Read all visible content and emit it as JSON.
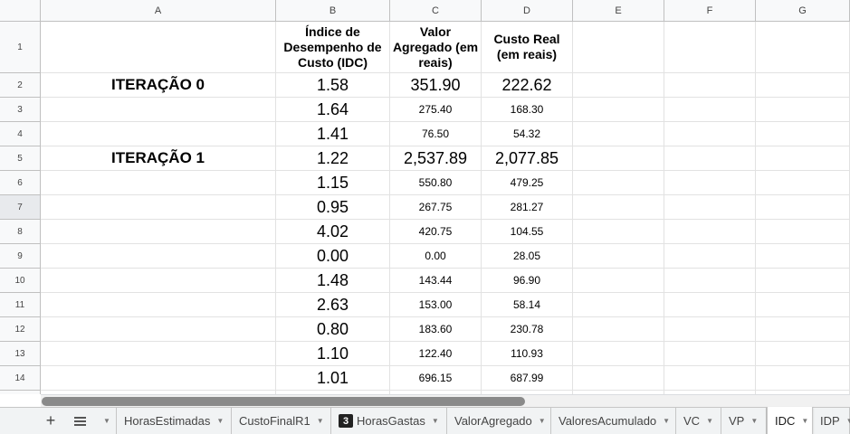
{
  "columns": [
    "A",
    "B",
    "C",
    "D",
    "E",
    "F",
    "G"
  ],
  "rows": [
    "1",
    "2",
    "3",
    "4",
    "5",
    "6",
    "7",
    "8",
    "9",
    "10",
    "11",
    "12",
    "13",
    "14"
  ],
  "header": {
    "b": "Índice de Desempenho de Custo (IDC)",
    "c": "Valor Agregado (em reais)",
    "d": "Custo Real (em reais)"
  },
  "data": [
    {
      "a": "ITERAÇÃO 0",
      "b": "1.58",
      "c": "351.90",
      "d": "222.62"
    },
    {
      "a": "",
      "b": "1.64",
      "c": "275.40",
      "d": "168.30"
    },
    {
      "a": "",
      "b": "1.41",
      "c": "76.50",
      "d": "54.32"
    },
    {
      "a": "ITERAÇÃO 1",
      "b": "1.22",
      "c": "2,537.89",
      "d": "2,077.85"
    },
    {
      "a": "",
      "b": "1.15",
      "c": "550.80",
      "d": "479.25"
    },
    {
      "a": "",
      "b": "0.95",
      "c": "267.75",
      "d": "281.27"
    },
    {
      "a": "",
      "b": "4.02",
      "c": "420.75",
      "d": "104.55"
    },
    {
      "a": "",
      "b": "0.00",
      "c": "0.00",
      "d": "28.05"
    },
    {
      "a": "",
      "b": "1.48",
      "c": "143.44",
      "d": "96.90"
    },
    {
      "a": "",
      "b": "2.63",
      "c": "153.00",
      "d": "58.14"
    },
    {
      "a": "",
      "b": "0.80",
      "c": "183.60",
      "d": "230.78"
    },
    {
      "a": "",
      "b": "1.10",
      "c": "122.40",
      "d": "110.93"
    },
    {
      "a": "",
      "b": "1.01",
      "c": "696.15",
      "d": "687.99"
    }
  ],
  "large_rows": [
    0,
    3
  ],
  "selected_row": "7",
  "tabs": [
    {
      "label": "HorasEstimadas"
    },
    {
      "label": "CustoFinalR1"
    },
    {
      "label": "HorasGastas",
      "badge": "3"
    },
    {
      "label": "ValorAgregado"
    },
    {
      "label": "ValoresAcumulado"
    },
    {
      "label": "VC"
    },
    {
      "label": "VP"
    },
    {
      "label": "IDC",
      "active": true
    },
    {
      "label": "IDP"
    }
  ],
  "icons": {
    "add": "plus-icon",
    "list": "sheet-list-icon",
    "menu": "caret-down-icon"
  }
}
